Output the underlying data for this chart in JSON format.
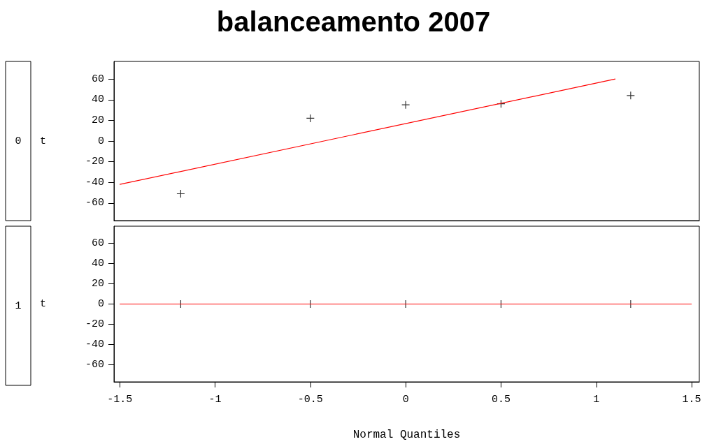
{
  "chart_data": [
    {
      "type": "scatter",
      "title": "balanceamento 2007",
      "annotations": [
        "0"
      ],
      "ylabel": "t",
      "xlim": [
        -1.53,
        1.54
      ],
      "xticks": [
        -1.5,
        -1,
        -0.5,
        0,
        0.5,
        1,
        1.5
      ],
      "ylim": [
        -77,
        77
      ],
      "yticks": [
        -60,
        -40,
        -20,
        0,
        20,
        40,
        60
      ],
      "tick_labels": "y",
      "grid": false,
      "series": [
        {
          "marker": "cross",
          "color": "#000000",
          "x": [
            -1.18,
            -0.5,
            0,
            0.5,
            1.18
          ],
          "values": [
            -51,
            22,
            35,
            36,
            44
          ]
        },
        {
          "type": "line",
          "line_style": "solid",
          "marker": "none",
          "color": "#ff0000",
          "x": [
            -1.5,
            1.1
          ],
          "values": [
            -42,
            60
          ]
        }
      ]
    },
    {
      "type": "scatter",
      "annotations": [
        "1"
      ],
      "ylabel": "t",
      "xlabel": "Normal Quantiles",
      "xlim": [
        -1.53,
        1.54
      ],
      "xticks": [
        -1.5,
        -1,
        -0.5,
        0,
        0.5,
        1,
        1.5
      ],
      "ylim": [
        -77,
        77
      ],
      "yticks": [
        -60,
        -40,
        -20,
        0,
        20,
        40,
        60
      ],
      "grid": false,
      "series": [
        {
          "marker": "cross",
          "color": "#000000",
          "x": [
            -1.18,
            -0.5,
            0,
            0.5,
            1.18
          ],
          "values": [
            0,
            0,
            0,
            0,
            0
          ]
        },
        {
          "type": "line",
          "line_style": "solid",
          "marker": "none",
          "color": "#ff0000",
          "x": [
            -1.5,
            1.5
          ],
          "values": [
            0,
            0
          ]
        }
      ]
    }
  ]
}
